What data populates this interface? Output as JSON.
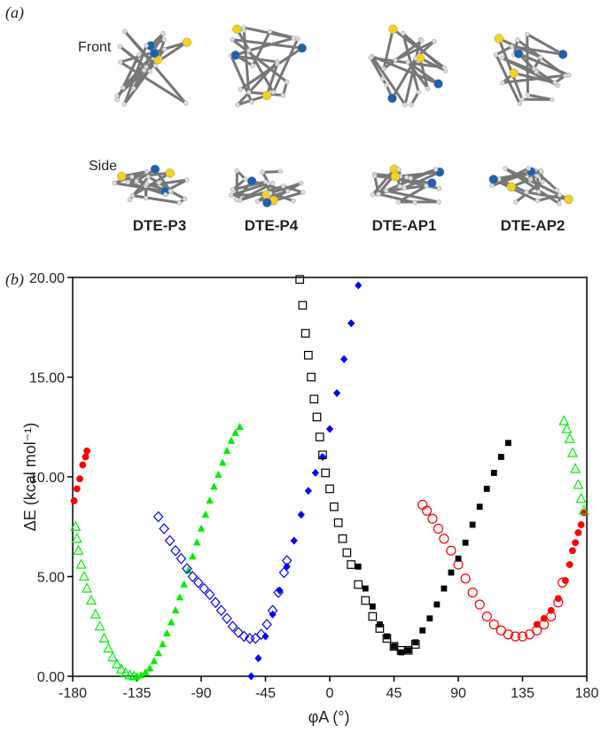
{
  "panel_a": {
    "label": "(a)",
    "rows": [
      "Front",
      "Side"
    ],
    "molecules": [
      "DTE-P3",
      "DTE-P4",
      "DTE-AP1",
      "DTE-AP2"
    ]
  },
  "chart_data": {
    "type": "scatter",
    "panel_label": "(b)",
    "x_label": "φA (°)",
    "y_label": "ΔE (kcal mol⁻¹)",
    "xlim": [
      -180,
      180
    ],
    "xticks": [
      -180,
      -135,
      -90,
      -45,
      0,
      45,
      90,
      135,
      180
    ],
    "ylim": [
      0,
      20
    ],
    "yticks": [
      {
        "value": 0,
        "label": "0.00"
      },
      {
        "value": 5,
        "label": "5.00"
      },
      {
        "value": 10,
        "label": "10.00"
      },
      {
        "value": 15,
        "label": "15.00"
      },
      {
        "value": 20,
        "label": "20.00"
      }
    ],
    "series": [
      {
        "color": "#ff0000",
        "marker": "circle",
        "filled": true,
        "x": [
          -179,
          -177,
          -175,
          -173,
          -171,
          -170,
          145,
          150,
          155,
          160,
          165,
          168,
          170,
          172,
          174,
          176,
          178
        ],
        "values": [
          8.8,
          9.4,
          9.9,
          10.6,
          11.0,
          11.3,
          2.6,
          2.9,
          3.3,
          3.9,
          4.8,
          5.6,
          6.3,
          6.7,
          7.2,
          7.6,
          8.2
        ]
      },
      {
        "color": "#ff0000",
        "marker": "circle",
        "filled": false,
        "x": [
          65,
          68,
          72,
          76,
          80,
          85,
          90,
          95,
          100,
          105,
          110,
          115,
          120,
          125,
          130,
          135,
          140,
          145,
          150,
          155,
          160,
          163
        ],
        "values": [
          8.6,
          8.3,
          7.9,
          7.4,
          6.9,
          6.3,
          5.6,
          4.9,
          4.2,
          3.6,
          3.0,
          2.6,
          2.3,
          2.1,
          2.0,
          2.0,
          2.1,
          2.3,
          2.6,
          3.0,
          3.7,
          4.7
        ]
      },
      {
        "color": "#00ee00",
        "marker": "triangle",
        "filled": true,
        "x": [
          -135,
          -132,
          -129,
          -126,
          -123,
          -120,
          -117,
          -114,
          -111,
          -108,
          -105,
          -102,
          -99,
          -96,
          -93,
          -90,
          -87,
          -84,
          -81,
          -78,
          -75,
          -72,
          -69,
          -66,
          -63
        ],
        "values": [
          0.0,
          0.05,
          0.2,
          0.4,
          0.75,
          1.15,
          1.6,
          2.15,
          2.7,
          3.3,
          3.95,
          4.6,
          5.3,
          6.0,
          6.7,
          7.4,
          8.1,
          8.8,
          9.5,
          10.1,
          10.7,
          11.3,
          11.8,
          12.2,
          12.5
        ]
      },
      {
        "color": "#00ee00",
        "marker": "triangle",
        "filled": false,
        "x": [
          -178,
          -177,
          -176,
          -174,
          -172,
          -170,
          -167,
          -164,
          -161,
          -158,
          -155,
          -152,
          -149,
          -146,
          -143,
          -140,
          -137,
          164,
          166,
          168,
          170,
          172,
          174,
          176,
          178
        ],
        "values": [
          7.5,
          6.9,
          6.3,
          5.6,
          5.0,
          4.4,
          3.8,
          3.1,
          2.5,
          1.9,
          1.4,
          0.95,
          0.6,
          0.35,
          0.15,
          0.05,
          0.0,
          12.8,
          12.4,
          11.9,
          11.2,
          10.4,
          9.6,
          8.9,
          8.3
        ]
      },
      {
        "color": "#0000ff",
        "marker": "diamond",
        "filled": false,
        "x": [
          -120,
          -116,
          -112,
          -108,
          -104,
          -100,
          -96,
          -92,
          -88,
          -84,
          -80,
          -76,
          -72,
          -68,
          -64,
          -60,
          -56,
          -52,
          -48,
          -44,
          -40,
          -36,
          -32,
          -30
        ],
        "values": [
          8.0,
          7.4,
          6.8,
          6.3,
          5.9,
          5.4,
          5.0,
          4.7,
          4.4,
          4.1,
          3.7,
          3.3,
          2.9,
          2.5,
          2.2,
          2.0,
          1.9,
          1.9,
          2.1,
          2.6,
          3.3,
          4.2,
          5.2,
          5.8
        ]
      },
      {
        "color": "#0000ff",
        "marker": "diamond",
        "filled": true,
        "x": [
          -55,
          -50,
          -45,
          -40,
          -35,
          -30,
          -25,
          -20,
          -15,
          -10,
          -5,
          0,
          5,
          10,
          15,
          20
        ],
        "values": [
          0.0,
          0.9,
          2.0,
          3.1,
          4.3,
          5.5,
          6.8,
          8.1,
          9.3,
          10.2,
          11.0,
          12.4,
          14.2,
          15.9,
          17.7,
          19.6
        ]
      },
      {
        "color": "#000000",
        "marker": "square",
        "filled": false,
        "x": [
          -21,
          -19,
          -17,
          -15,
          -13,
          -11,
          -9,
          -7,
          -5,
          -3,
          0,
          3,
          6,
          9,
          12,
          15,
          20,
          25,
          30,
          35,
          40,
          45,
          50,
          55,
          60
        ],
        "values": [
          19.9,
          18.6,
          17.2,
          16.1,
          15.0,
          13.9,
          13.0,
          12.0,
          11.1,
          10.2,
          9.4,
          8.5,
          7.7,
          6.9,
          6.2,
          5.6,
          4.6,
          3.8,
          3.0,
          2.4,
          1.9,
          1.5,
          1.3,
          1.3,
          1.6
        ]
      },
      {
        "color": "#000000",
        "marker": "square",
        "filled": true,
        "x": [
          20,
          25,
          30,
          35,
          40,
          45,
          50,
          55,
          60,
          65,
          70,
          75,
          80,
          85,
          90,
          95,
          100,
          105,
          110,
          115,
          120,
          125
        ],
        "values": [
          5.5,
          4.4,
          3.5,
          2.6,
          2.0,
          1.5,
          1.2,
          1.3,
          1.7,
          2.3,
          2.9,
          3.6,
          4.4,
          5.2,
          5.9,
          6.7,
          7.6,
          8.5,
          9.4,
          10.2,
          11.0,
          11.7
        ]
      }
    ]
  }
}
